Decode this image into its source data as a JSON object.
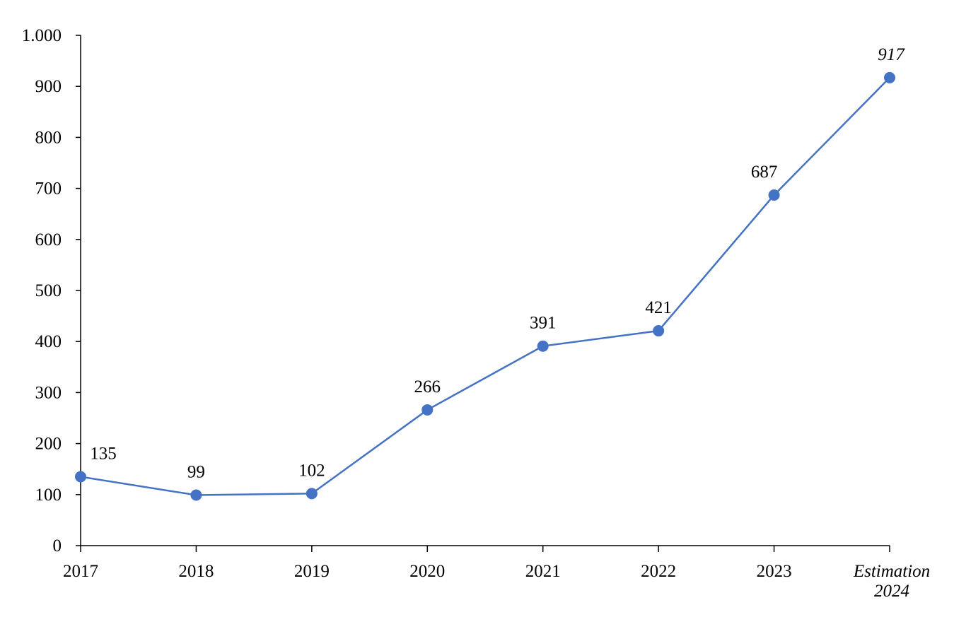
{
  "chart_data": {
    "type": "line",
    "title": "",
    "xlabel": "",
    "ylabel": "",
    "categories": [
      "2017",
      "2018",
      "2019",
      "2020",
      "2021",
      "2022",
      "2023",
      [
        "Estimation",
        "2024"
      ]
    ],
    "values": [
      135,
      99,
      102,
      266,
      391,
      421,
      687,
      917
    ],
    "data_labels": [
      "135",
      "99",
      "102",
      "266",
      "391",
      "421",
      "687",
      "917"
    ],
    "ylim": [
      0,
      1000
    ],
    "yticks": [
      0,
      100,
      200,
      300,
      400,
      500,
      600,
      700,
      800,
      900,
      1000
    ],
    "ytick_labels": [
      "0",
      "100",
      "200",
      "300",
      "400",
      "500",
      "600",
      "700",
      "800",
      "900",
      "1.000"
    ],
    "italic_last_category": true,
    "grid": false,
    "legend": "none",
    "color": "#4472C4"
  }
}
